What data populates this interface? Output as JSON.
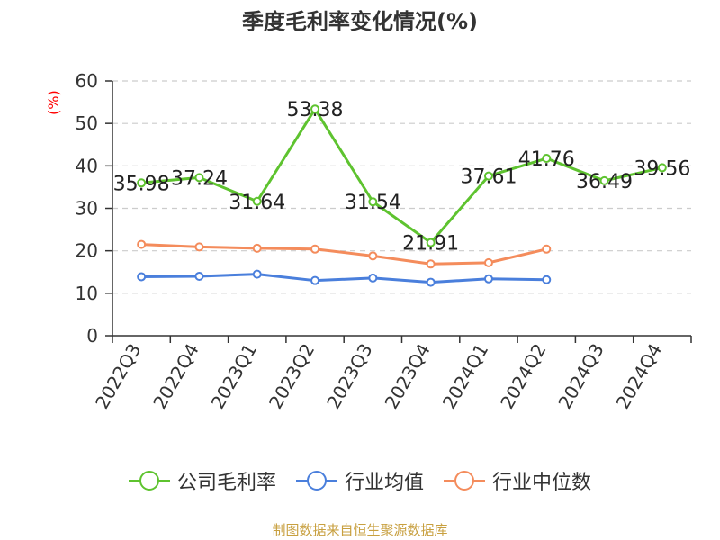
{
  "chart_data": {
    "type": "line",
    "title": "季度毛利率变化情况(%)",
    "ylabel": "(%)",
    "xlabel": "",
    "ylim": [
      0,
      60
    ],
    "yticks": [
      0,
      10,
      20,
      30,
      40,
      50,
      60
    ],
    "grid": true,
    "legend_position": "bottom",
    "categories": [
      "2022Q3",
      "2022Q4",
      "2023Q1",
      "2023Q2",
      "2023Q3",
      "2023Q4",
      "2024Q1",
      "2024Q2",
      "2024Q3",
      "2024Q4"
    ],
    "series": [
      {
        "name": "公司毛利率",
        "color": "#5ec32f",
        "values": [
          35.98,
          37.24,
          31.64,
          53.38,
          31.54,
          21.91,
          37.61,
          41.76,
          36.49,
          39.56
        ],
        "data_labels": [
          "35.98",
          "37.24",
          "31.64",
          "53.38",
          "31.54",
          "21.91",
          "37.61",
          "41.76",
          "36.49",
          "39.56"
        ]
      },
      {
        "name": "行业均值",
        "color": "#4a7fdc",
        "values": [
          13.9,
          14.0,
          14.5,
          13.0,
          13.6,
          12.6,
          13.4,
          13.2,
          null,
          null
        ]
      },
      {
        "name": "行业中位数",
        "color": "#f48c5c",
        "values": [
          21.5,
          20.9,
          20.6,
          20.4,
          18.8,
          16.9,
          17.2,
          20.4,
          null,
          null
        ]
      }
    ]
  },
  "source": "制图数据来自恒生聚源数据库"
}
